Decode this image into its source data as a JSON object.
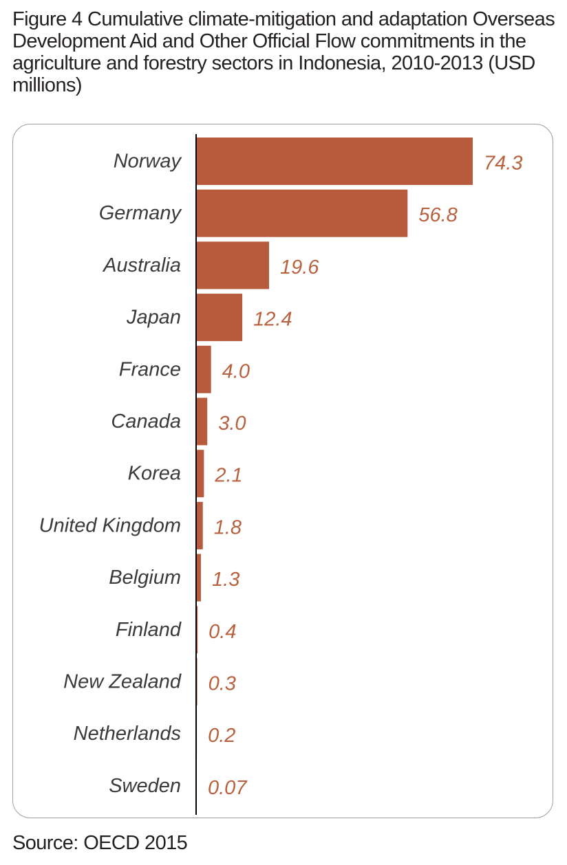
{
  "figure": {
    "title": "Figure 4 Cumulative climate-mitigation and adaptation Overseas Development Aid and Other Official Flow commitments in the agriculture and forestry sectors in Indonesia, 2010-2013 (USD millions)",
    "source": "Source: OECD 2015"
  },
  "colors": {
    "bar": "#b85a3c",
    "value_label": "#b8613f",
    "axis": "#000000",
    "frame": "#9d9d9d"
  },
  "chart_data": {
    "type": "bar",
    "orientation": "horizontal",
    "title": "Figure 4 Cumulative climate-mitigation and adaptation Overseas Development Aid and Other Official Flow commitments in the agriculture and forestry sectors in Indonesia, 2010-2013 (USD millions)",
    "xlabel": "",
    "ylabel": "",
    "categories": [
      "Norway",
      "Germany",
      "Australia",
      "Japan",
      "France",
      "Canada",
      "Korea",
      "United Kingdom",
      "Belgium",
      "Finland",
      "New Zealand",
      "Netherlands",
      "Sweden"
    ],
    "values": [
      74.3,
      56.8,
      19.6,
      12.4,
      4.0,
      3.0,
      2.1,
      1.8,
      1.3,
      0.4,
      0.3,
      0.2,
      0.07
    ],
    "value_labels": [
      "74.3",
      "56.8",
      "19.6",
      "12.4",
      "4.0",
      "3.0",
      "2.1",
      "1.8",
      "1.3",
      "0.4",
      "0.3",
      "0.2",
      "0.07"
    ],
    "xlim": [
      0,
      74.3
    ],
    "grid": false,
    "legend": "none"
  }
}
